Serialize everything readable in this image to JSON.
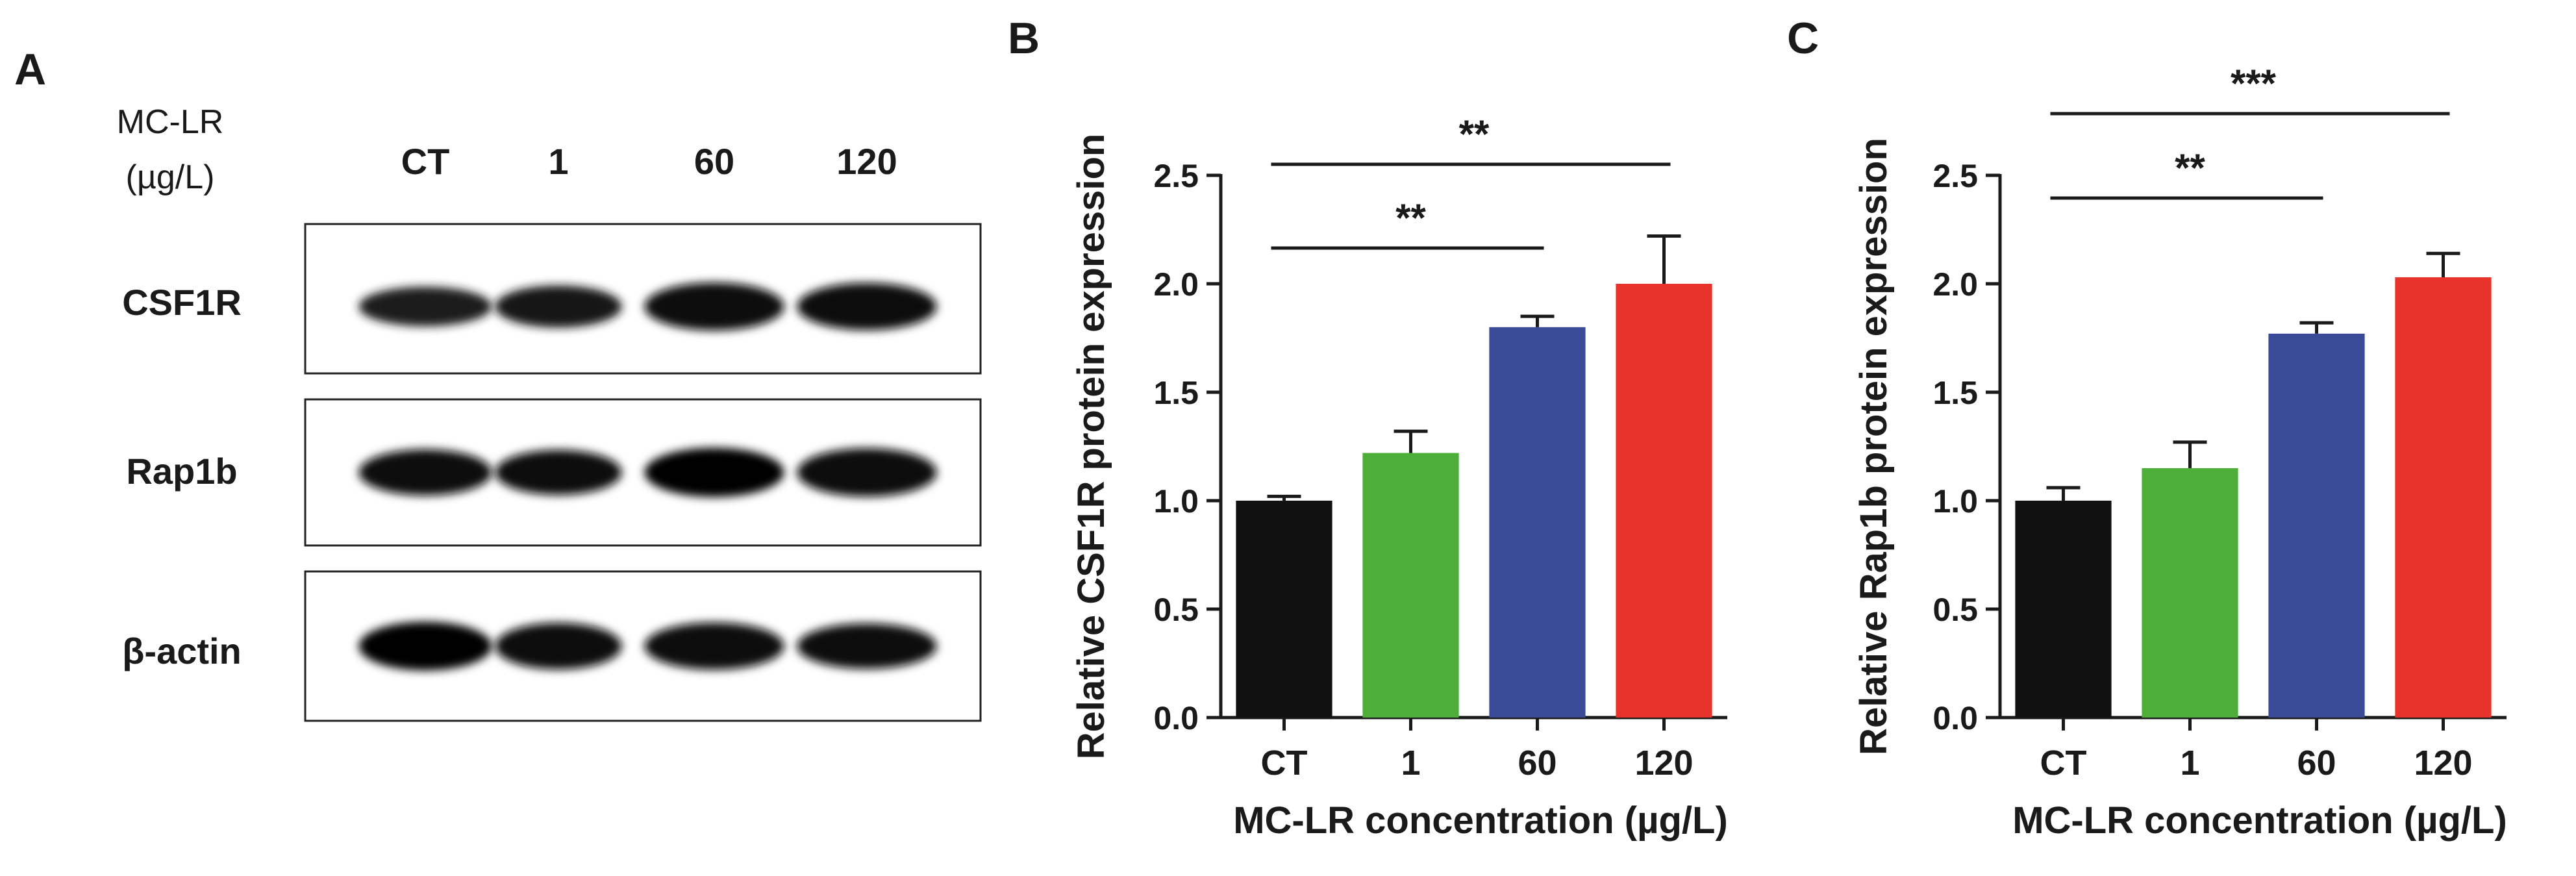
{
  "panel_a": {
    "letter": "A",
    "treatment_label_line1": "MC-LR",
    "treatment_label_line2": "(µg/L)",
    "lanes": [
      "CT",
      "1",
      "60",
      "120"
    ],
    "rows": [
      {
        "label": "CSF1R",
        "intensities": [
          0.62,
          0.72,
          0.95,
          0.92
        ]
      },
      {
        "label": "Rap1b",
        "intensities": [
          0.88,
          0.84,
          1.0,
          0.97
        ]
      },
      {
        "label": "β-actin",
        "intensities": [
          0.98,
          0.9,
          0.92,
          0.85
        ]
      }
    ]
  },
  "colors": {
    "CT": "#111111",
    "1": "#4daf3a",
    "60": "#3b4a96",
    "120": "#e8332c",
    "axis": "#1a1a1a"
  },
  "chart_data": [
    {
      "type": "bar",
      "panel": "B",
      "categories": [
        "CT",
        "1",
        "60",
        "120"
      ],
      "values": [
        1.0,
        1.22,
        1.8,
        2.0
      ],
      "errors": [
        0.02,
        0.1,
        0.05,
        0.22
      ],
      "ylabel": "Relative CSF1R protein expression",
      "xlabel": "MC-LR concentration (µg/L)",
      "ylim": [
        0,
        2.5
      ],
      "yticks": [
        "0.0",
        "0.5",
        "1.0",
        "1.5",
        "2.0",
        "2.5"
      ],
      "significance": [
        {
          "from": "CT",
          "to": "60",
          "label": "**"
        },
        {
          "from": "CT",
          "to": "120",
          "label": "**"
        }
      ]
    },
    {
      "type": "bar",
      "panel": "C",
      "categories": [
        "CT",
        "1",
        "60",
        "120"
      ],
      "values": [
        1.0,
        1.15,
        1.77,
        2.03
      ],
      "errors": [
        0.06,
        0.12,
        0.05,
        0.11
      ],
      "ylabel": "Relative Rap1b protein expression",
      "xlabel": "MC-LR concentration (µg/L)",
      "ylim": [
        0,
        2.5
      ],
      "yticks": [
        "0.0",
        "0.5",
        "1.0",
        "1.5",
        "2.0",
        "2.5"
      ],
      "significance": [
        {
          "from": "CT",
          "to": "60",
          "label": "**"
        },
        {
          "from": "CT",
          "to": "120",
          "label": "***"
        }
      ]
    }
  ]
}
